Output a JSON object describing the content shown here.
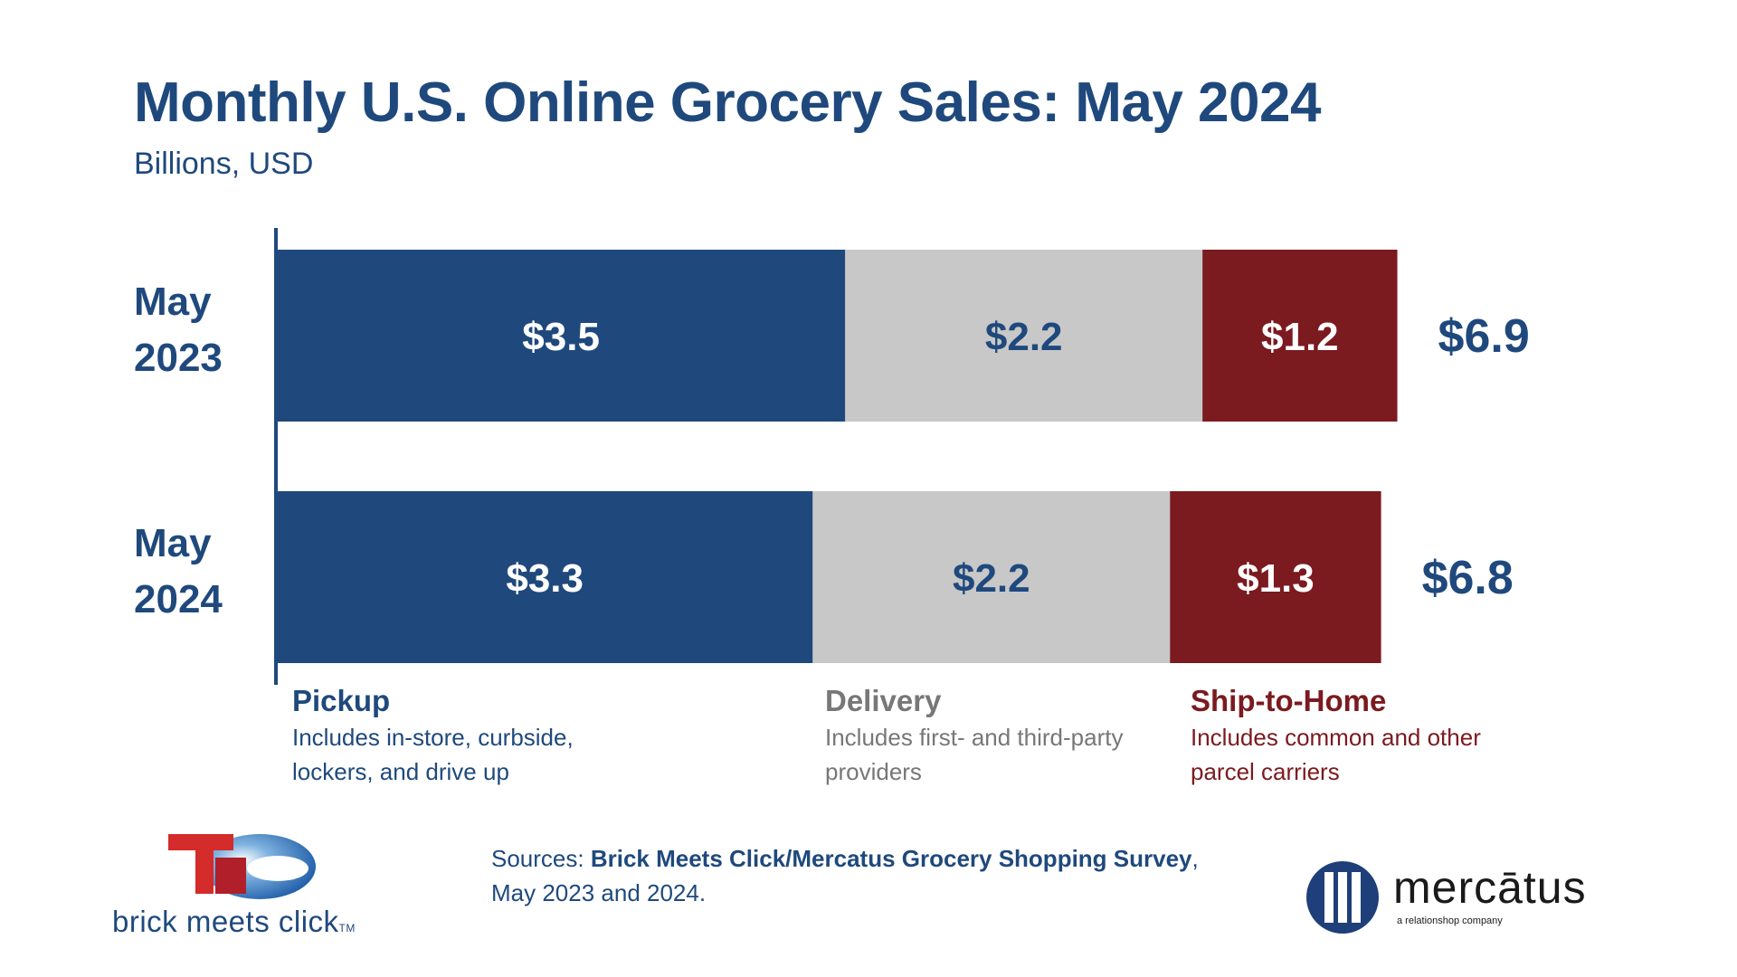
{
  "header": {
    "title": "Monthly U.S. Online Grocery Sales: May 2024",
    "subtitle": "Billions, USD"
  },
  "colors": {
    "pickup": "#1f497d",
    "delivery": "#c8c8c8",
    "ship_to_home": "#7b1a1f",
    "text_primary": "#1f497d",
    "text_delivery": "#777777"
  },
  "chart_data": {
    "type": "bar",
    "orientation": "horizontal",
    "stacked": true,
    "title": "Monthly U.S. Online Grocery Sales: May 2024",
    "subtitle": "Billions, USD",
    "categories": [
      "May 2023",
      "May 2024"
    ],
    "category_label_lines": [
      [
        "May",
        "2023"
      ],
      [
        "May",
        "2024"
      ]
    ],
    "series": [
      {
        "name": "Pickup",
        "values": [
          3.5,
          3.3
        ],
        "labels": [
          "$3.5",
          "$3.3"
        ],
        "color": "#1f497d",
        "label_color": "#ffffff"
      },
      {
        "name": "Delivery",
        "values": [
          2.2,
          2.2
        ],
        "labels": [
          "$2.2",
          "$2.2"
        ],
        "color": "#c8c8c8",
        "label_color": "#1f497d"
      },
      {
        "name": "Ship-to-Home",
        "values": [
          1.2,
          1.3
        ],
        "labels": [
          "$1.2",
          "$1.3"
        ],
        "color": "#7b1a1f",
        "label_color": "#ffffff"
      }
    ],
    "totals": [
      6.9,
      6.8
    ],
    "total_labels": [
      "$6.9",
      "$6.8"
    ],
    "xlim": [
      0,
      6.9
    ],
    "grid": false
  },
  "legend": [
    {
      "name": "Pickup",
      "description": "Includes in-store, curbside, lockers, and drive up",
      "color": "#1f497d"
    },
    {
      "name": "Delivery",
      "description": "Includes first- and third-party providers",
      "color": "#777777"
    },
    {
      "name": "Ship-to-Home",
      "description": "Includes common and other parcel carriers",
      "color": "#7b1a1f"
    }
  ],
  "sources": {
    "prefix": "Sources: ",
    "name": "Brick Meets Click/Mercatus Grocery Shopping Survey",
    "suffix": ",",
    "line2": "May 2023 and 2024."
  },
  "logos": {
    "brick_meets_click": "brick meets click",
    "brick_meets_click_tm": "TM",
    "mercatus": "mercātus",
    "mercatus_tag": "a relationshop company"
  }
}
